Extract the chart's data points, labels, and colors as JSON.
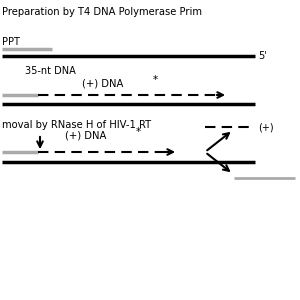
{
  "title1": "Preparation by T4 DNA Polymerase Prim",
  "title2": "moval by RNase H of HIV-1 RT",
  "label_ppt": "PPT",
  "label_35nt": "35-nt DNA",
  "label_5prime": "5'",
  "label_plus_dna": "(+) DNA",
  "label_star": "*",
  "label_plus": "(+)",
  "bg_color": "#ffffff",
  "gray_color": "#aaaaaa",
  "black_color": "#000000"
}
